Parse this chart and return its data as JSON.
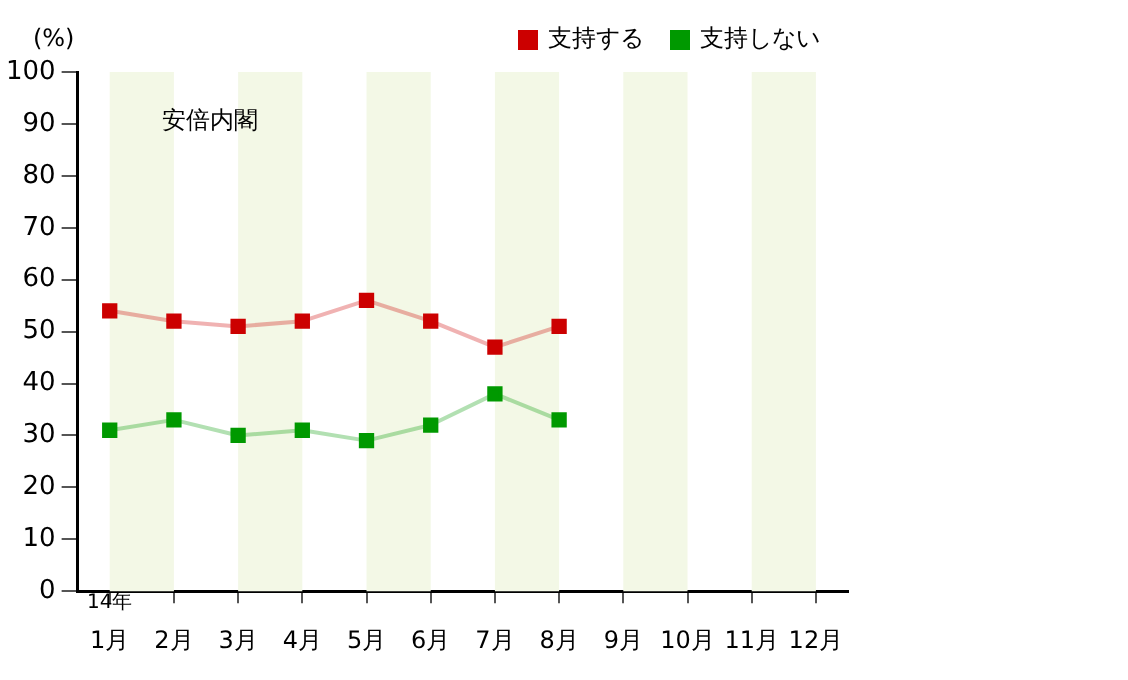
{
  "chart_data": {
    "type": "line",
    "ylabel": "(%)",
    "categories": [
      "1月",
      "2月",
      "3月",
      "4月",
      "5月",
      "6月",
      "7月",
      "8月",
      "9月",
      "10月",
      "11月",
      "12月"
    ],
    "series": [
      {
        "name": "支持する",
        "color": "#cc0000",
        "values": [
          54,
          52,
          51,
          52,
          56,
          52,
          47,
          51,
          null,
          null,
          null,
          null
        ]
      },
      {
        "name": "支持しない",
        "color": "#009900",
        "values": [
          31,
          33,
          30,
          31,
          29,
          32,
          38,
          33,
          null,
          null,
          null,
          null
        ]
      }
    ],
    "ylim": [
      0,
      100
    ],
    "yticks": [
      0,
      10,
      20,
      30,
      40,
      50,
      60,
      70,
      80,
      90,
      100
    ],
    "bands": [
      {
        "axis": "x",
        "from": "1月",
        "to": "2月",
        "color": "#f3f8e6"
      },
      {
        "axis": "x",
        "from": "3月",
        "to": "4月",
        "color": "#f3f8e6"
      },
      {
        "axis": "x",
        "from": "5月",
        "to": "6月",
        "color": "#f3f8e6"
      },
      {
        "axis": "x",
        "from": "7月",
        "to": "8月",
        "color": "#f3f8e6"
      },
      {
        "axis": "x",
        "from": "9月",
        "to": "10月",
        "color": "#f3f8e6"
      },
      {
        "axis": "x",
        "from": "11月",
        "to": "12月",
        "color": "#f3f8e6"
      }
    ],
    "annotations": [
      "14年",
      "安倍内閣"
    ],
    "grid": false,
    "legend": "top right",
    "marker": "square",
    "line_style": "solid"
  }
}
